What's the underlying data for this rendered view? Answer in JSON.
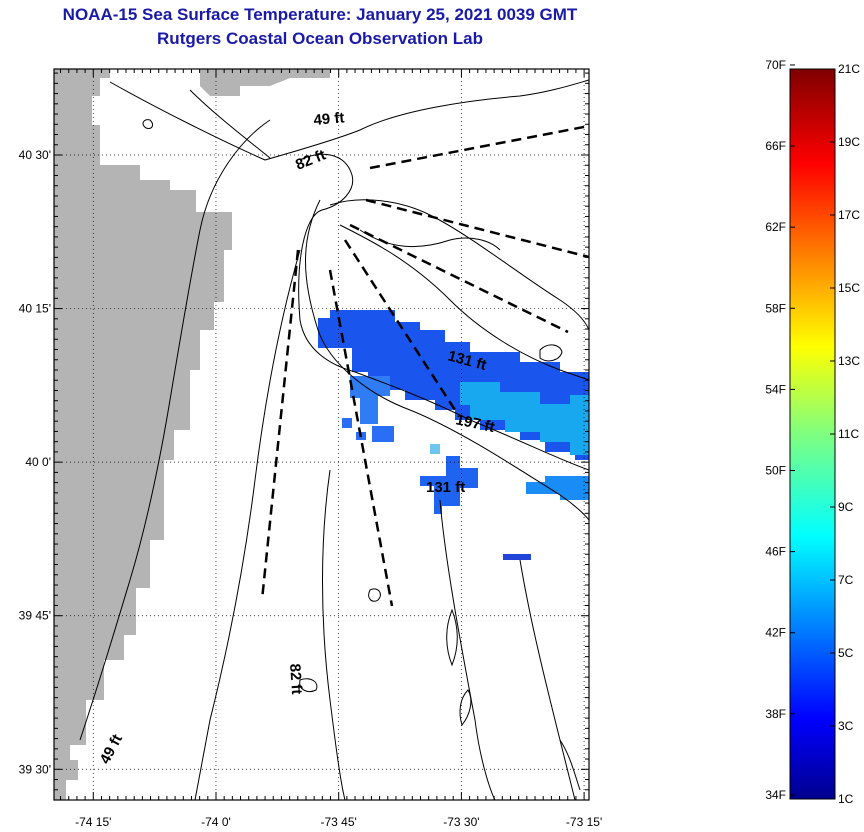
{
  "title": {
    "line1": "NOAA-15 Sea Surface Temperature:  January 25, 2021 0039 GMT",
    "line2": "Rutgers Coastal Ocean Observation Lab"
  },
  "map": {
    "lat_labels": [
      "40 30'",
      "40 15'",
      "40 0'",
      "39 45'",
      "39 30'"
    ],
    "lon_labels": [
      "-74 15'",
      "-74 0'",
      "-73 45'",
      "-73 30'",
      "-73 15'"
    ],
    "lat_values": [
      40.5,
      40.25,
      40.0,
      39.75,
      39.5
    ],
    "lon_values": [
      -74.25,
      -74.0,
      -73.75,
      -73.5,
      -73.25
    ],
    "lat_range": [
      39.45,
      40.64
    ],
    "lon_range": [
      -74.33,
      -73.24
    ],
    "depth_labels": [
      "49 ft",
      "82 ft",
      "131 ft",
      "197 ft",
      "131 ft",
      "82 ft",
      "49 ft"
    ],
    "land_color": "#b4b4b4",
    "grid": "dotted"
  },
  "colorbar": {
    "fahrenheit_labels": [
      "70F",
      "66F",
      "62F",
      "58F",
      "54F",
      "50F",
      "46F",
      "42F",
      "38F",
      "34F"
    ],
    "celsius_labels": [
      "21C",
      "19C",
      "17C",
      "15C",
      "13C",
      "11C",
      "9C",
      "7C",
      "5C",
      "3C",
      "1C"
    ],
    "range_celsius": [
      1,
      21
    ],
    "colormap": "jet"
  }
}
